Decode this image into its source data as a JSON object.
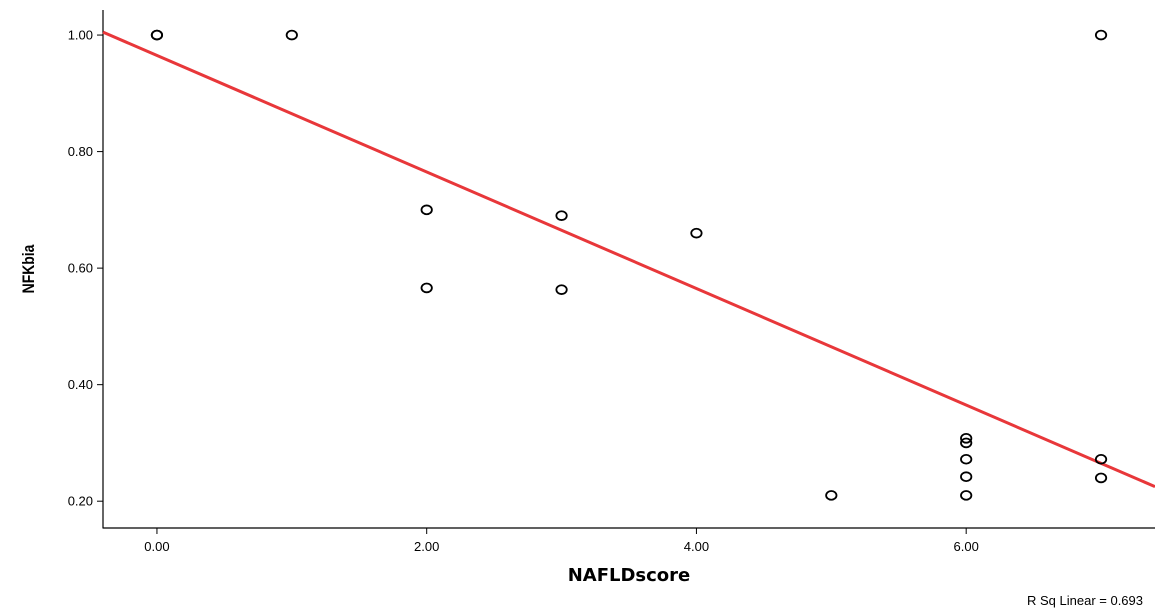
{
  "chart_data": {
    "type": "scatter",
    "xlabel": "NAFLDscore",
    "ylabel": "NFKbia",
    "xlim": [
      -0.4,
      7.4
    ],
    "ylim": [
      0.154,
      1.043
    ],
    "x_ticks": [
      0,
      2,
      4,
      6
    ],
    "x_tick_labels": [
      "0.00",
      "2.00",
      "4.00",
      "6.00"
    ],
    "y_ticks": [
      0.2,
      0.4,
      0.6,
      0.8,
      1.0
    ],
    "y_tick_labels": [
      "0.20",
      "0.40",
      "0.60",
      "0.80",
      "1.00"
    ],
    "grid": false,
    "points": [
      {
        "x": 0,
        "y": 1.0
      },
      {
        "x": 0,
        "y": 1.0
      },
      {
        "x": 1,
        "y": 1.0
      },
      {
        "x": 2,
        "y": 0.7
      },
      {
        "x": 2,
        "y": 0.566
      },
      {
        "x": 3,
        "y": 0.69
      },
      {
        "x": 3,
        "y": 0.563
      },
      {
        "x": 4,
        "y": 0.66
      },
      {
        "x": 5,
        "y": 0.21
      },
      {
        "x": 6,
        "y": 0.308
      },
      {
        "x": 6,
        "y": 0.3
      },
      {
        "x": 6,
        "y": 0.272
      },
      {
        "x": 6,
        "y": 0.242
      },
      {
        "x": 6,
        "y": 0.21
      },
      {
        "x": 7,
        "y": 1.0
      },
      {
        "x": 7,
        "y": 0.272
      },
      {
        "x": 7,
        "y": 0.24
      }
    ],
    "fit_line": {
      "intercept": 0.965,
      "slope": -0.1
    },
    "annotation": "R Sq Linear = 0.693",
    "colors": {
      "fit_line": "#e8373a",
      "points": "#000000"
    }
  }
}
